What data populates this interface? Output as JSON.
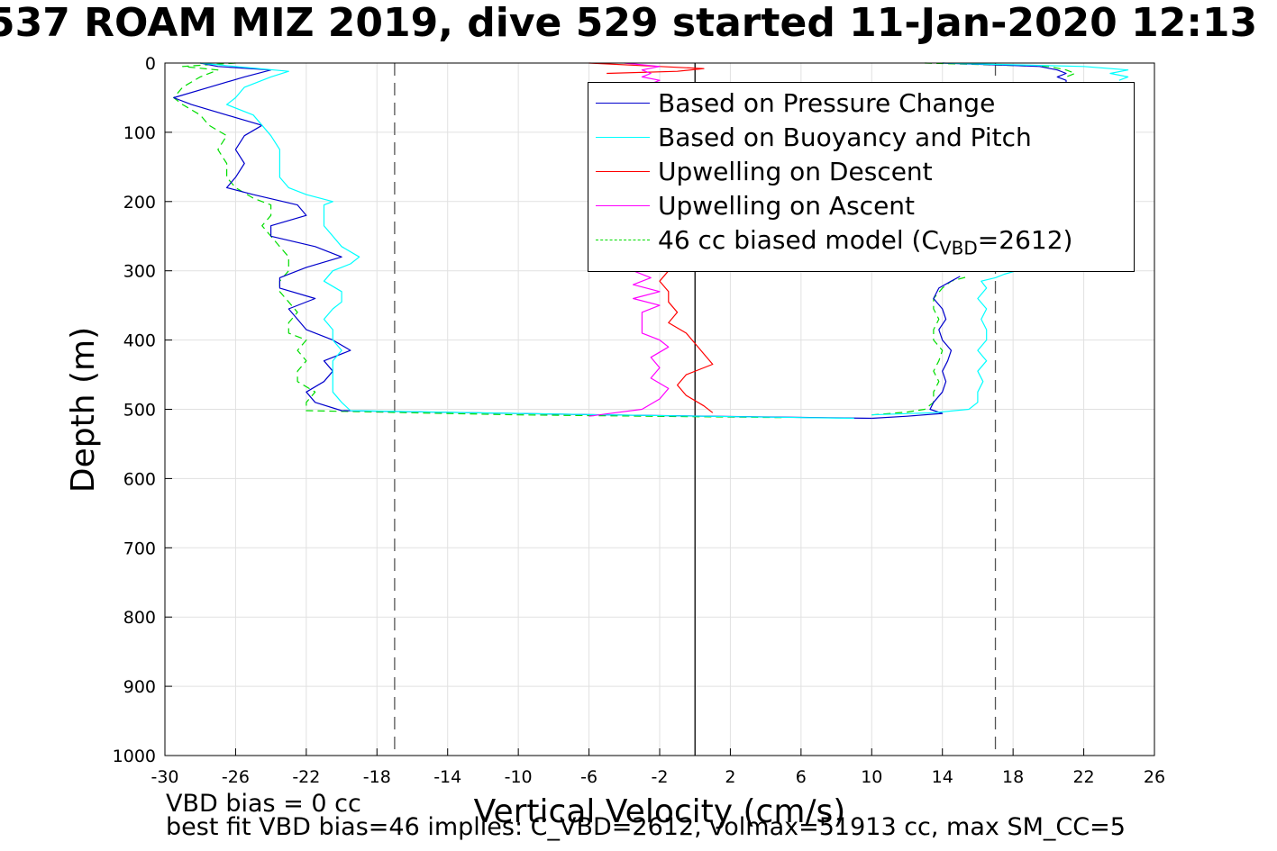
{
  "title": "537 ROAM MIZ 2019, dive 529 started 11-Jan-2020 12:13",
  "footer": {
    "line1": "VBD bias = 0 cc",
    "line2": "best fit VBD bias=46 implies: C_VBD=2612, volmax=51913 cc, max SM_CC=5"
  },
  "legend": {
    "items": [
      {
        "label": "Based on Pressure Change",
        "color": "#0000cc",
        "dash": false
      },
      {
        "label": "Based on Buoyancy and Pitch",
        "color": "#00ffff",
        "dash": false
      },
      {
        "label": "Upwelling on Descent",
        "color": "#ff0000",
        "dash": false
      },
      {
        "label": "Upwelling on Ascent",
        "color": "#ff00ff",
        "dash": false
      }
    ],
    "model": {
      "prefix": "46 cc biased model (C",
      "sub": "VBD",
      "suffix": "=2612)",
      "color": "#00dd00"
    }
  },
  "chart_data": {
    "type": "line",
    "title": "537 ROAM MIZ 2019, dive 529 started 11-Jan-2020 12:13",
    "xlabel": "Vertical Velocity (cm/s)",
    "ylabel": "Depth (m)",
    "xlim": [
      -30,
      26
    ],
    "ylim": [
      0,
      1000
    ],
    "y_reversed": true,
    "grid": true,
    "legend_position": "top-right",
    "x_ticks": [
      "-30",
      "-26",
      "-22",
      "-18",
      "-14",
      "-10",
      "-6",
      "-2",
      "2",
      "6",
      "10",
      "14",
      "18",
      "22",
      "26"
    ],
    "y_ticks": [
      "0",
      "100",
      "200",
      "300",
      "400",
      "500",
      "600",
      "700",
      "800",
      "900",
      "1000"
    ],
    "reference_lines": [
      {
        "x": -17,
        "style": "dashed",
        "color": "#555555"
      },
      {
        "x": 17,
        "style": "dashed",
        "color": "#555555"
      },
      {
        "x": 0,
        "style": "solid",
        "color": "#000000"
      }
    ],
    "series": [
      {
        "name": "Based on Pressure Change",
        "color": "#0000cc",
        "segments": [
          {
            "depth": [
              0,
              5,
              10,
              20,
              35,
              50,
              60,
              75,
              90,
              105,
              125,
              145,
              165,
              180,
              190,
              205,
              220,
              235,
              250,
              265,
              280,
              295,
              310,
              325,
              340,
              355,
              370,
              385,
              400,
              415,
              430,
              445,
              460,
              475,
              490,
              502,
              508,
              513
            ],
            "v": [
              -28,
              -27,
              -24,
              -25.5,
              -27.5,
              -29.5,
              -28.5,
              -26.5,
              -24.5,
              -25.5,
              -26,
              -25.5,
              -26,
              -26.5,
              -25,
              -22.5,
              -22,
              -24,
              -24,
              -21.5,
              -20,
              -22,
              -23.5,
              -23.5,
              -21.5,
              -23,
              -22.5,
              -22,
              -20.5,
              -19.5,
              -21,
              -20.5,
              -21,
              -22,
              -21.5,
              -20,
              -5,
              10
            ]
          },
          {
            "depth": [
              513,
              510,
              506,
              500,
              490,
              475,
              460,
              445,
              430,
              415,
              400,
              385,
              370,
              355,
              340,
              325,
              315,
              308
            ],
            "v": [
              10,
              12,
              14,
              13.3,
              13.5,
              14,
              14.2,
              14,
              14.3,
              14.5,
              14,
              13.8,
              14.2,
              14,
              13.5,
              13.8,
              14.5,
              15
            ]
          },
          {
            "depth": [
              0,
              5,
              10,
              15,
              20,
              25,
              30
            ],
            "v": [
              14,
              19.5,
              20.5,
              21,
              20.5,
              21,
              21
            ]
          }
        ]
      },
      {
        "name": "Based on Buoyancy and Pitch",
        "color": "#00ffff",
        "segments": [
          {
            "depth": [
              0,
              5,
              12,
              20,
              35,
              50,
              60,
              75,
              90,
              105,
              125,
              145,
              165,
              180,
              190,
              200,
              205,
              220,
              235,
              250,
              265,
              280,
              290,
              300,
              315,
              330,
              345,
              355,
              370,
              385,
              400,
              415,
              430,
              445,
              460,
              475,
              490,
              502,
              508,
              513
            ],
            "v": [
              -28,
              -26,
              -23,
              -24,
              -25.5,
              -26,
              -26.5,
              -25,
              -24.5,
              -24,
              -23.5,
              -23.5,
              -23.5,
              -23,
              -22,
              -20.5,
              -21,
              -21,
              -21,
              -20.5,
              -20,
              -19,
              -19.5,
              -20.5,
              -21,
              -20,
              -20,
              -20.5,
              -21,
              -20.5,
              -20.5,
              -20,
              -20.5,
              -20.5,
              -20.5,
              -20.5,
              -20,
              -19.5,
              -5,
              9
            ]
          },
          {
            "depth": [
              508,
              505,
              500,
              490,
              475,
              460,
              445,
              430,
              415,
              400,
              385,
              370,
              355,
              340,
              325,
              315,
              310,
              305,
              300
            ],
            "v": [
              10,
              13.5,
              15.5,
              16,
              16,
              16.3,
              16,
              16.5,
              16,
              16.5,
              16.5,
              16.2,
              16.5,
              16,
              16.5,
              16.2,
              17,
              17.5,
              18.2
            ]
          },
          {
            "depth": [
              0,
              5,
              10,
              15,
              20,
              25
            ],
            "v": [
              14,
              22,
              24.5,
              23.5,
              24.5,
              24
            ]
          }
        ]
      },
      {
        "name": "Upwelling on Descent",
        "color": "#ff0000",
        "segments": [
          {
            "depth": [
              0,
              5,
              8,
              12,
              15
            ],
            "v": [
              -6,
              -2,
              0.5,
              -1,
              -5
            ]
          },
          {
            "depth": [
              300,
              315,
              330,
              345,
              360,
              375,
              390,
              405,
              420,
              435,
              450,
              465,
              480,
              495,
              505
            ],
            "v": [
              -1.5,
              -2,
              -1.5,
              -1.5,
              -1,
              -1.5,
              -0.5,
              0,
              0.5,
              1,
              -0.5,
              -1,
              -0.5,
              0.5,
              1
            ]
          }
        ]
      },
      {
        "name": "Upwelling on Ascent",
        "color": "#ff00ff",
        "segments": [
          {
            "depth": [
              0,
              5,
              10,
              15,
              20,
              25,
              30,
              40,
              50,
              55
            ],
            "v": [
              -4,
              -2,
              -3,
              -2.5,
              -3,
              -2,
              -2.5,
              -3.5,
              -4.5,
              -6
            ]
          },
          {
            "depth": [
              300,
              310,
              320,
              330,
              340,
              350,
              360,
              375,
              390,
              400,
              410,
              425,
              440,
              455,
              470,
              485,
              500,
              505,
              510
            ],
            "v": [
              -3.5,
              -2.5,
              -3.5,
              -2,
              -3.5,
              -2,
              -3,
              -3,
              -3,
              -2,
              -1.5,
              -2.5,
              -2,
              -2.5,
              -1.5,
              -2,
              -3,
              -4.5,
              -6
            ]
          }
        ]
      }
    ],
    "model": {
      "name": "46 cc biased model (CVBD=2612)",
      "color": "#00dd00",
      "segments": [
        {
          "depth": [
            0,
            5,
            10,
            20,
            35,
            50,
            60,
            75,
            90,
            105,
            125,
            145,
            165,
            180,
            195,
            205,
            220,
            235,
            250,
            265,
            280,
            300,
            315,
            330,
            345,
            360,
            375,
            390,
            400,
            415,
            430,
            445,
            460,
            475,
            490,
            502,
            508,
            512
          ],
          "v": [
            -26,
            -29,
            -27,
            -28,
            -29,
            -29.5,
            -29,
            -28,
            -27.5,
            -26.5,
            -27,
            -26.5,
            -26.5,
            -26,
            -25,
            -24,
            -24,
            -24.5,
            -24,
            -23.5,
            -23,
            -23,
            -23.5,
            -23.5,
            -23,
            -22.5,
            -23,
            -23,
            -22,
            -22.5,
            -22,
            -22.5,
            -22.5,
            -21.5,
            -22,
            -22,
            -10,
            5
          ]
        },
        {
          "depth": [
            508,
            504,
            500,
            490,
            475,
            460,
            445,
            430,
            415,
            400,
            385,
            370,
            355,
            340,
            325,
            315,
            308
          ],
          "v": [
            10,
            12,
            13,
            13.5,
            13.5,
            13.8,
            13.5,
            13.8,
            14,
            13.5,
            13.5,
            13.8,
            13.5,
            13.5,
            14,
            14.5,
            15.5
          ]
        },
        {
          "depth": [
            0,
            5,
            10,
            15,
            20
          ],
          "v": [
            13,
            20,
            21,
            21.5,
            21
          ]
        }
      ]
    }
  }
}
